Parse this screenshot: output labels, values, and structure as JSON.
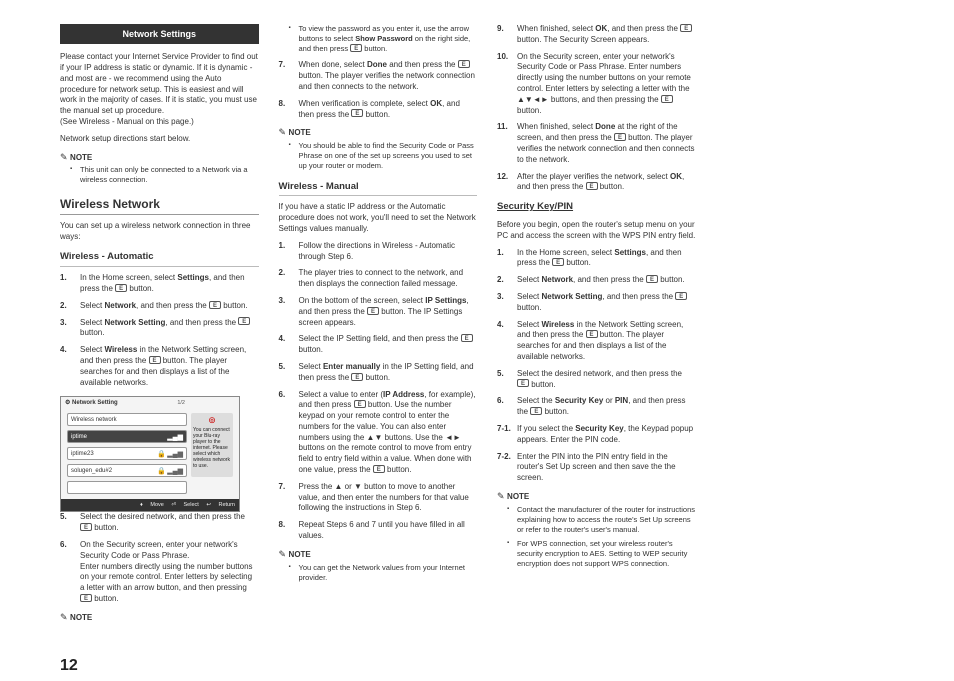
{
  "pageNumber": "12",
  "header": {
    "title": "Network Settings"
  },
  "intro": {
    "p1": "Please contact your Internet Service Provider to find out if your IP address is static or dynamic. If it is dynamic - and most are - we recommend using the Auto procedure for network setup. This is easiest and will work in the majority of cases. If it is static, you must use the manual set up procedure.",
    "p1b": "(See Wireless - Manual on this page.)",
    "p2": "Network setup directions start below.",
    "noteLabel": "NOTE",
    "note1": "This unit can only be connected to a Network via a wireless connection."
  },
  "wirelessNetwork": {
    "title": "Wireless Network",
    "intro": "You can set up a wireless network connection in three ways:"
  },
  "wAuto": {
    "title": "Wireless - Automatic",
    "s1a": "In the Home screen, select ",
    "s1b": "Settings",
    "s1c": ", and then press the ",
    "s1d": " button.",
    "s2a": "Select ",
    "s2b": "Network",
    "s2c": ", and then press the ",
    "s2d": " button.",
    "s3a": "Select ",
    "s3b": "Network Setting",
    "s3c": ", and then press the ",
    "s3d": " button.",
    "s4a": "Select ",
    "s4b": "Wireless",
    "s4c": " in the Network Setting screen, and then press the ",
    "s4d": " button. The player searches for and then displays a list of the available networks."
  },
  "screenshot": {
    "title": "Network Setting",
    "pageInd": "1/2",
    "row0": "Wireless network",
    "row1": "iptime",
    "row2": "iptime23",
    "row3": "solugen_edu#2",
    "row4": "",
    "sideText": "You can connect your Blu-ray player to the internet. Please select which wireless network to use.",
    "footerMove": "Move",
    "footerSelect": "Select",
    "footerReturn": "Return"
  },
  "wAuto2": {
    "s5": "Select the desired network, and then press the ",
    "s5b": " button.",
    "s6": "On the Security screen, enter your network's Security Code or Pass Phrase.",
    "s6b": "Enter numbers directly using the number buttons on your remote control. Enter letters by selecting a letter with an arrow button, and then pressing ",
    "s6c": " button.",
    "noteLabel": "NOTE",
    "note1a": "To view the password as you enter it, use the arrow buttons to select ",
    "note1b": "Show Password",
    "note1c": " on the right side, and then press ",
    "note1d": " button.",
    "s7a": "When done, select ",
    "s7b": "Done",
    "s7c": " and then press the ",
    "s7d": " button. The player verifies the network connection and then connects to the network.",
    "s8a": "When verification is complete, select ",
    "s8b": "OK",
    "s8c": ", and then press the ",
    "s8d": " button.",
    "note2Label": "NOTE",
    "note2": "You should be able to find the Security Code or Pass Phrase on one of the set up screens you used to set up your router or modem."
  },
  "wManual": {
    "title": "Wireless - Manual",
    "intro": "If you have a static IP address or the Automatic procedure does not work, you'll need to set the Network Settings values manually.",
    "s1": "Follow the directions in Wireless - Automatic through Step 6.",
    "s2": "The player tries to connect to the network, and then displays the connection failed message.",
    "s3a": "On the bottom of the screen, select ",
    "s3b": "IP Settings",
    "s3c": ", and then press the ",
    "s3d": " button. The IP Settings screen appears.",
    "s4a": "Select the IP Setting field, and then press the ",
    "s4b": " button.",
    "s5a": "Select ",
    "s5b": "Enter manually",
    "s5c": " in the IP Setting field, and then press the ",
    "s5d": " button.",
    "s6a": "Select a value to enter (",
    "s6b": "IP Address",
    "s6c": ", for example), and then press ",
    "s6d": " button. Use the number keypad on your remote control to enter the numbers for the value. You can also enter numbers using the ▲▼ buttons. Use the ◄► buttons on the remote control to move from entry field to entry field within a value. When done with one value, press the ",
    "s6e": " button.",
    "s7": "Press the ▲ or ▼ button to move to another value, and then enter the numbers for that value following the instructions in Step 6.",
    "s8": "Repeat Steps 6 and 7 until you have filled in all values.",
    "noteLabel": "NOTE",
    "note1": "You can get the Network values from your Internet provider.",
    "s9a": "When finished, select ",
    "s9b": "OK",
    "s9c": ", and then press the ",
    "s9d": " button. The Security Screen appears.",
    "s10a": "On the Security screen, enter your network's Security Code or Pass Phrase. Enter numbers directly using the number buttons on your remote control. Enter letters by selecting a letter with the ▲▼◄► buttons, and then pressing the ",
    "s10b": " button.",
    "s11a": "When finished, select ",
    "s11b": "Done",
    "s11c": " at the right of the screen, and then press the ",
    "s11d": " button. The player verifies the network connection and then connects to the network.",
    "s12a": "After the player verifies the network, select ",
    "s12b": "OK",
    "s12c": ", and then press the ",
    "s12d": " button."
  },
  "secKey": {
    "title": "Security Key/PIN",
    "intro": "Before you begin, open the router's setup menu on your PC and access the screen with the WPS PIN entry field.",
    "s1a": "In the Home screen, select ",
    "s1b": "Settings",
    "s1c": ", and then press the ",
    "s1d": " button.",
    "s2a": "Select ",
    "s2b": "Network",
    "s2c": ", and then press the ",
    "s2d": " button.",
    "s3a": "Select ",
    "s3b": "Network Setting",
    "s3c": ", and then press the ",
    "s3d": " button.",
    "s4a": "Select ",
    "s4b": "Wireless",
    "s4c": " in the Network Setting screen, and then press the ",
    "s4d": " button. The player searches for and then displays a list of the available networks.",
    "s5a": "Select the desired network, and then press the ",
    "s5b": " button.",
    "s6a": "Select the ",
    "s6b": "Security Key",
    "s6c": " or ",
    "s6d": "PIN",
    "s6e": ", and then press the ",
    "s6f": " button.",
    "s7n": "7-1.",
    "s7a": "If you select the ",
    "s7b": "Security Key",
    "s7c": ", the Keypad popup appears. Enter the PIN code.",
    "s8n": "7-2.",
    "s8": "Enter the PIN into the PIN entry field in the router's Set Up screen and then save the the screen.",
    "noteLabel": "NOTE",
    "note1": "Contact the manufacturer of the router for instructions explaining how to access the route's Set Up screens or refer to the router's user's manual.",
    "note2": "For WPS connection, set your wireless router's security encryption to AES. Setting to WEP security encryption does not support WPS connection."
  }
}
